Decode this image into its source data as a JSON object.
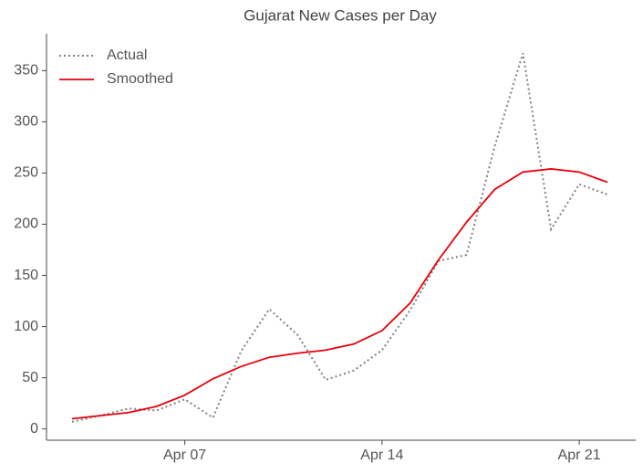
{
  "chart_data": {
    "type": "line",
    "title": "Gujarat New Cases per Day",
    "categories": [
      null,
      null,
      null,
      null,
      "Apr 07",
      null,
      null,
      null,
      null,
      null,
      null,
      "Apr 14",
      null,
      null,
      null,
      null,
      null,
      null,
      "Apr 21",
      null
    ],
    "series": [
      {
        "name": "Actual",
        "color": "#808080",
        "dash": "dotted",
        "values": [
          7,
          13,
          20,
          18,
          29,
          11,
          76,
          117,
          92,
          48,
          57,
          77,
          116,
          164,
          170,
          276,
          367,
          195,
          239,
          229
        ]
      },
      {
        "name": "Smoothed",
        "color": "#e8000b",
        "dash": "solid",
        "values": [
          10,
          13,
          16,
          22,
          33,
          49,
          61,
          70,
          74,
          77,
          83,
          96,
          123,
          165,
          202,
          234,
          251,
          254,
          251,
          241
        ]
      }
    ],
    "ylim": [
      -11,
      386
    ],
    "yticks": [
      0,
      50,
      100,
      150,
      200,
      250,
      300,
      350
    ],
    "legend": "upper left",
    "grid": false
  }
}
